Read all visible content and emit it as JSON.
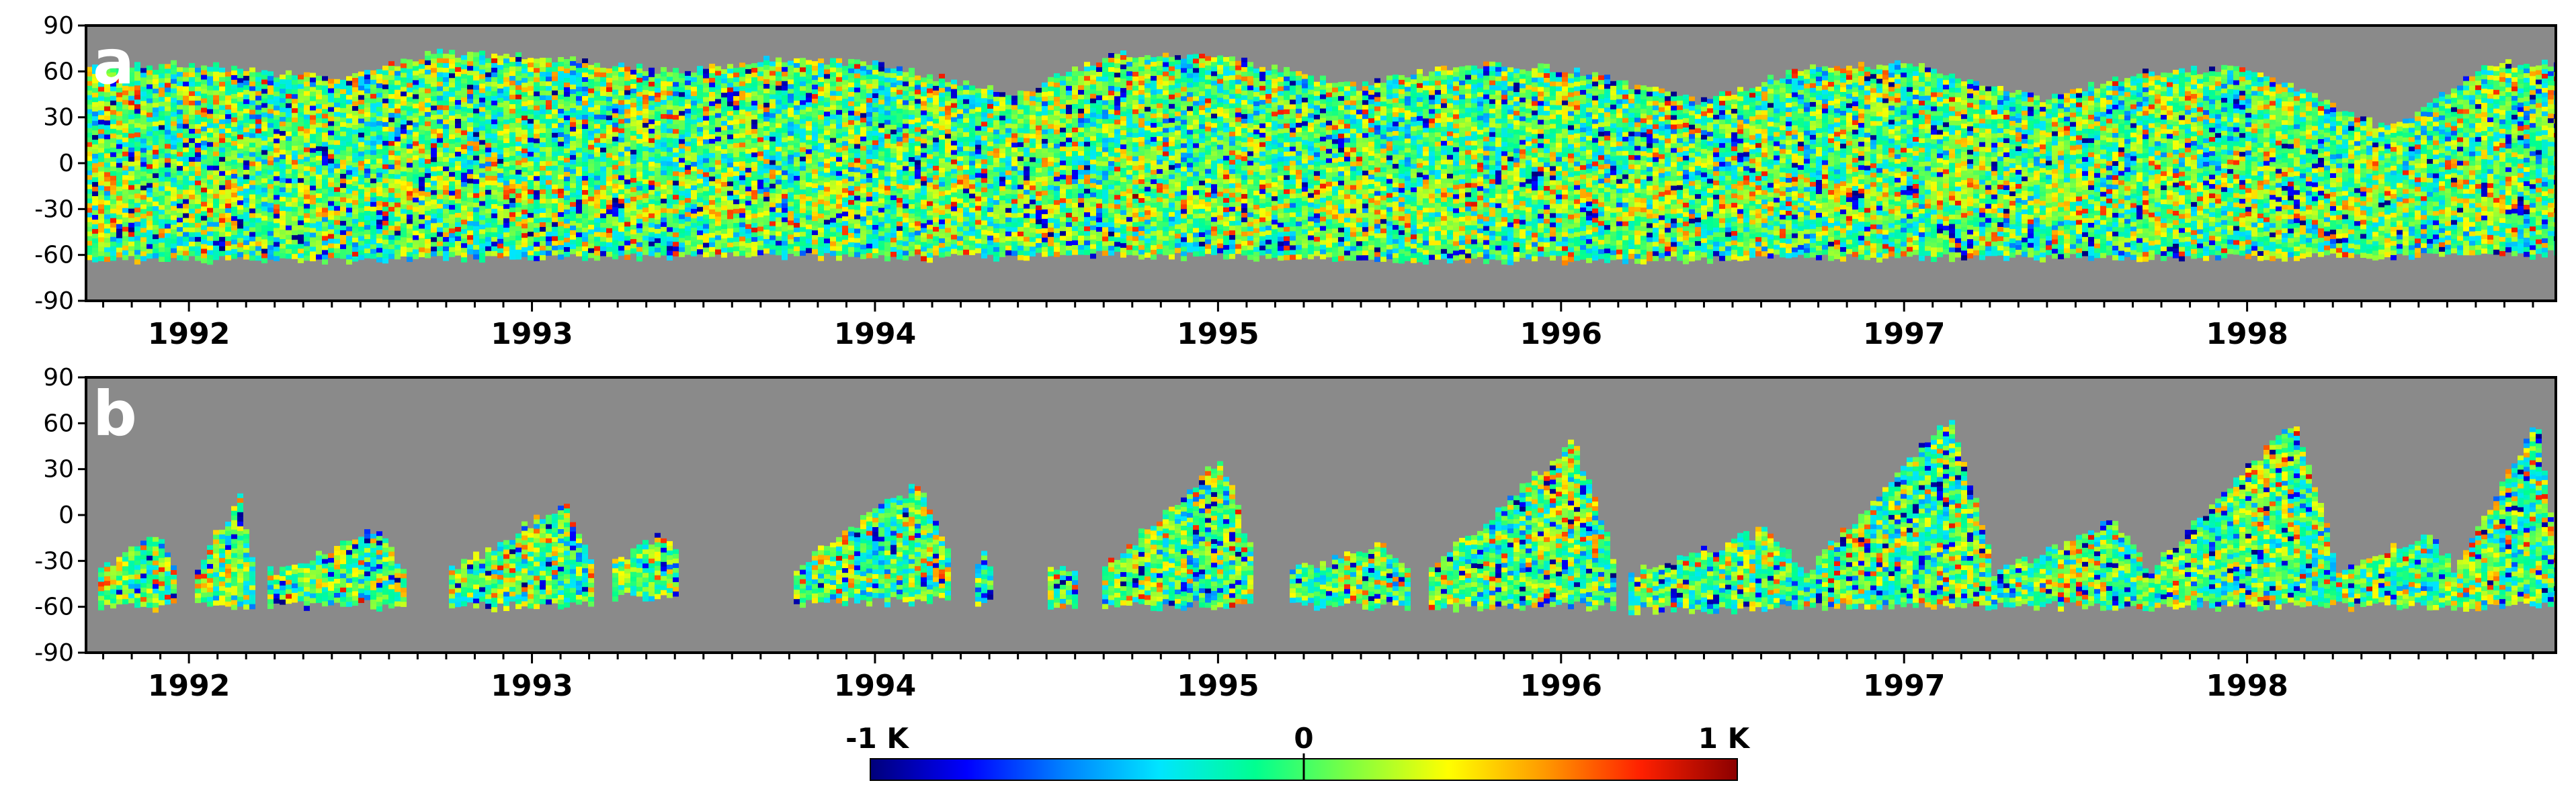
{
  "chart_data": [
    {
      "type": "heatmap",
      "panel_label": "a",
      "x": [
        "1992",
        "1993",
        "1994",
        "1995",
        "1996",
        "1997",
        "1998"
      ],
      "xlim": [
        1991.7,
        1998.9
      ],
      "y_ticks": [
        "90",
        "60",
        "30",
        "0",
        "-30",
        "-60",
        "-90"
      ],
      "ylim": [
        -90,
        90
      ],
      "missing_color": "#8a8a8a",
      "coverage": {
        "description_points_year": [
          1991.7,
          1992.0,
          1992.4,
          1992.7,
          1993.0,
          1993.4,
          1993.7,
          1994.0,
          1994.4,
          1994.7,
          1995.0,
          1995.4,
          1995.7,
          1996.0,
          1996.4,
          1996.7,
          1997.0,
          1997.4,
          1997.7,
          1998.0,
          1998.4,
          1998.7,
          1998.9
        ],
        "north_edge_lat": [
          62,
          65,
          55,
          72,
          70,
          60,
          68,
          65,
          45,
          72,
          70,
          50,
          65,
          62,
          40,
          62,
          65,
          42,
          60,
          62,
          22,
          65,
          65
        ],
        "south_edge_lat": [
          -62,
          -62,
          -62,
          -60,
          -60,
          -60,
          -58,
          -60,
          -60,
          -58,
          -60,
          -62,
          -62,
          -62,
          -62,
          -60,
          -60,
          -60,
          -60,
          -60,
          -60,
          -58,
          -58
        ]
      }
    },
    {
      "type": "heatmap",
      "panel_label": "b",
      "x": [
        "1992",
        "1993",
        "1994",
        "1995",
        "1996",
        "1997",
        "1998"
      ],
      "xlim": [
        1991.7,
        1998.9
      ],
      "y_ticks": [
        "90",
        "60",
        "30",
        "0",
        "-30",
        "-60",
        "-90"
      ],
      "ylim": [
        -90,
        90
      ],
      "missing_color": "#8a8a8a",
      "data_segments": [
        {
          "t_start": 1991.72,
          "t_end": 1991.95,
          "lat_min": -58,
          "lat_max": -10,
          "peak_lat": -10
        },
        {
          "t_start": 1992.0,
          "t_end": 1992.18,
          "lat_min": -58,
          "lat_max": 12,
          "peak_lat": 12
        },
        {
          "t_start": 1992.22,
          "t_end": 1992.62,
          "lat_min": -58,
          "lat_max": -10,
          "peak_lat": -10
        },
        {
          "t_start": 1992.75,
          "t_end": 1993.18,
          "lat_min": -58,
          "lat_max": 8,
          "peak_lat": 8
        },
        {
          "t_start": 1993.22,
          "t_end": 1993.42,
          "lat_min": -52,
          "lat_max": -12,
          "peak_lat": -12
        },
        {
          "t_start": 1993.75,
          "t_end": 1994.22,
          "lat_min": -55,
          "lat_max": 20,
          "peak_lat": 20
        },
        {
          "t_start": 1994.28,
          "t_end": 1994.33,
          "lat_min": -55,
          "lat_max": -25,
          "peak_lat": -25
        },
        {
          "t_start": 1994.5,
          "t_end": 1994.58,
          "lat_min": -58,
          "lat_max": -35,
          "peak_lat": -35
        },
        {
          "t_start": 1994.65,
          "t_end": 1995.1,
          "lat_min": -58,
          "lat_max": 38,
          "peak_lat": 38
        },
        {
          "t_start": 1995.2,
          "t_end": 1995.55,
          "lat_min": -58,
          "lat_max": -20,
          "peak_lat": -20
        },
        {
          "t_start": 1995.6,
          "t_end": 1996.15,
          "lat_min": -58,
          "lat_max": 48,
          "peak_lat": 48
        },
        {
          "t_start": 1996.18,
          "t_end": 1996.7,
          "lat_min": -60,
          "lat_max": -10,
          "peak_lat": -10
        },
        {
          "t_start": 1996.7,
          "t_end": 1997.25,
          "lat_min": -58,
          "lat_max": 65,
          "peak_lat": 65
        },
        {
          "t_start": 1997.25,
          "t_end": 1997.7,
          "lat_min": -58,
          "lat_max": -5,
          "peak_lat": -5
        },
        {
          "t_start": 1997.7,
          "t_end": 1998.25,
          "lat_min": -58,
          "lat_max": 62,
          "peak_lat": 62
        },
        {
          "t_start": 1998.25,
          "t_end": 1998.6,
          "lat_min": -58,
          "lat_max": -12,
          "peak_lat": -12
        },
        {
          "t_start": 1998.6,
          "t_end": 1998.9,
          "lat_min": -58,
          "lat_max": 62,
          "peak_lat": 62
        }
      ]
    }
  ],
  "colorbar": {
    "min_label": "-1 K",
    "mid_label": "0",
    "max_label": "1 K",
    "range": [
      -1,
      1
    ],
    "colors": [
      "#00007a",
      "#0000ff",
      "#0080ff",
      "#00e5ff",
      "#00ff90",
      "#80ff40",
      "#ffff00",
      "#ff9900",
      "#ff2000",
      "#8b0000"
    ]
  }
}
